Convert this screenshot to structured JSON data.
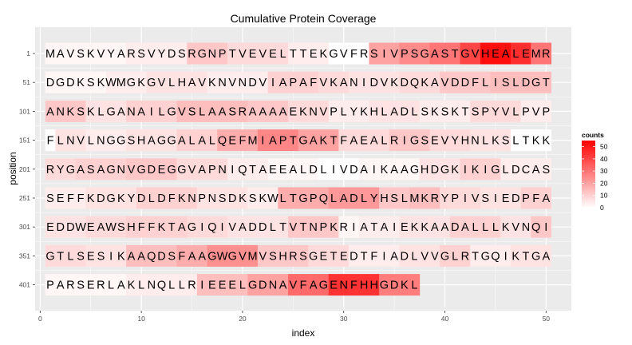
{
  "chart_data": {
    "type": "heatmap",
    "title": "Cumulative Protein Coverage",
    "xlabel": "index",
    "ylabel": "position",
    "xlim": [
      -0.5,
      52.5
    ],
    "x_ticks": [
      0,
      10,
      20,
      30,
      40,
      50
    ],
    "y_ticks": [
      "1",
      "51",
      "101",
      "151",
      "201",
      "251",
      "301",
      "351",
      "401"
    ],
    "sequence_rows": [
      "MAVSKVYARSVYDSRGNPTVEVELTTEKGVFRSIVPSGASTGVHEALEMR",
      "DGDKSKWMGKGVLHAVKNVNDVIAPAFVKANIDVKDQKAVDDFLISLDGT",
      "ANKSKLGANAILGVSLAASRAAAAEKNVPLYKHLADLSKSKTSPYVLPVP",
      "FLNVLNGGSHAGGALALQEFMIAPTGAKTFAEALRIGSEVYHNLKSLTKK",
      "RYGASAGNVGDEGGVAPNIQTAEEALDLIVDAIKAAGHDGKIKIGLDCAS",
      "SEFFKDGKYDLDFKNPNSDKSKWLTGPQLADLYHSLMKRYPIVSIEDPFA",
      "EDDWEAWSHFFKTAGIQIVADDLTVTNPKRIATAIEKKAADALLLKVNQI",
      "GTLSESIKAAQDSFAAGWGVMVSHRSGETEDTFIADLVVGLRTGQIKTGA",
      "PARSERLAKLNQLLRIEEELGDNAVFAGENFHHGDKL"
    ],
    "coverage_segments": [
      [
        [
          1,
          8,
          2
        ],
        [
          9,
          14,
          4
        ],
        [
          15,
          18,
          12
        ],
        [
          19,
          24,
          8
        ],
        [
          25,
          28,
          4
        ],
        [
          29,
          32,
          0
        ],
        [
          33,
          35,
          20
        ],
        [
          36,
          38,
          25
        ],
        [
          39,
          41,
          30
        ],
        [
          42,
          43,
          40
        ],
        [
          44,
          46,
          52
        ],
        [
          47,
          48,
          45
        ],
        [
          49,
          50,
          30
        ]
      ],
      [
        [
          1,
          6,
          2
        ],
        [
          7,
          10,
          4
        ],
        [
          11,
          16,
          6
        ],
        [
          17,
          22,
          4
        ],
        [
          23,
          27,
          10
        ],
        [
          28,
          30,
          8
        ],
        [
          31,
          35,
          6
        ],
        [
          36,
          39,
          8
        ],
        [
          40,
          44,
          12
        ],
        [
          45,
          50,
          14
        ]
      ],
      [
        [
          1,
          4,
          12
        ],
        [
          5,
          8,
          6
        ],
        [
          9,
          13,
          10
        ],
        [
          14,
          20,
          14
        ],
        [
          21,
          24,
          12
        ],
        [
          25,
          28,
          8
        ],
        [
          29,
          32,
          4
        ],
        [
          33,
          37,
          6
        ],
        [
          38,
          42,
          4
        ],
        [
          43,
          47,
          8
        ],
        [
          48,
          50,
          4
        ]
      ],
      [
        [
          1,
          1,
          0
        ],
        [
          2,
          4,
          6
        ],
        [
          5,
          8,
          4
        ],
        [
          9,
          13,
          6
        ],
        [
          14,
          17,
          10
        ],
        [
          18,
          21,
          18
        ],
        [
          22,
          25,
          26
        ],
        [
          26,
          29,
          20
        ],
        [
          30,
          34,
          8
        ],
        [
          35,
          38,
          12
        ],
        [
          39,
          42,
          8
        ],
        [
          43,
          46,
          6
        ],
        [
          47,
          50,
          0
        ]
      ],
      [
        [
          1,
          3,
          8
        ],
        [
          4,
          8,
          10
        ],
        [
          9,
          13,
          12
        ],
        [
          14,
          18,
          8
        ],
        [
          19,
          22,
          4
        ],
        [
          23,
          27,
          2
        ],
        [
          28,
          31,
          0
        ],
        [
          32,
          37,
          2
        ],
        [
          38,
          41,
          6
        ],
        [
          42,
          45,
          10
        ],
        [
          46,
          50,
          4
        ]
      ],
      [
        [
          1,
          4,
          4
        ],
        [
          5,
          9,
          6
        ],
        [
          10,
          15,
          10
        ],
        [
          16,
          20,
          6
        ],
        [
          21,
          23,
          4
        ],
        [
          24,
          28,
          18
        ],
        [
          29,
          33,
          22
        ],
        [
          34,
          36,
          12
        ],
        [
          37,
          39,
          14
        ],
        [
          40,
          43,
          8
        ],
        [
          44,
          47,
          6
        ],
        [
          48,
          50,
          10
        ]
      ],
      [
        [
          1,
          4,
          6
        ],
        [
          5,
          8,
          8
        ],
        [
          9,
          14,
          10
        ],
        [
          15,
          18,
          8
        ],
        [
          19,
          24,
          6
        ],
        [
          25,
          29,
          12
        ],
        [
          30,
          31,
          2
        ],
        [
          32,
          35,
          4
        ],
        [
          36,
          40,
          6
        ],
        [
          41,
          45,
          10
        ],
        [
          46,
          48,
          6
        ],
        [
          49,
          50,
          12
        ]
      ],
      [
        [
          1,
          4,
          8
        ],
        [
          5,
          8,
          6
        ],
        [
          9,
          13,
          14
        ],
        [
          14,
          16,
          18
        ],
        [
          17,
          21,
          24
        ],
        [
          22,
          26,
          12
        ],
        [
          27,
          30,
          8
        ],
        [
          31,
          35,
          4
        ],
        [
          36,
          39,
          6
        ],
        [
          40,
          42,
          10
        ],
        [
          43,
          46,
          4
        ],
        [
          47,
          50,
          6
        ]
      ],
      [
        [
          1,
          8,
          2
        ],
        [
          9,
          15,
          4
        ],
        [
          16,
          20,
          14
        ],
        [
          21,
          24,
          20
        ],
        [
          25,
          28,
          32
        ],
        [
          29,
          33,
          44
        ],
        [
          34,
          37,
          28
        ]
      ]
    ],
    "legend": {
      "title": "counts",
      "breaks": [
        0,
        10,
        20,
        30,
        40,
        50
      ],
      "range": [
        0,
        55
      ],
      "low_color": "#ffffff",
      "high_color": "#ff0000",
      "placement": "right"
    },
    "grid": true
  }
}
